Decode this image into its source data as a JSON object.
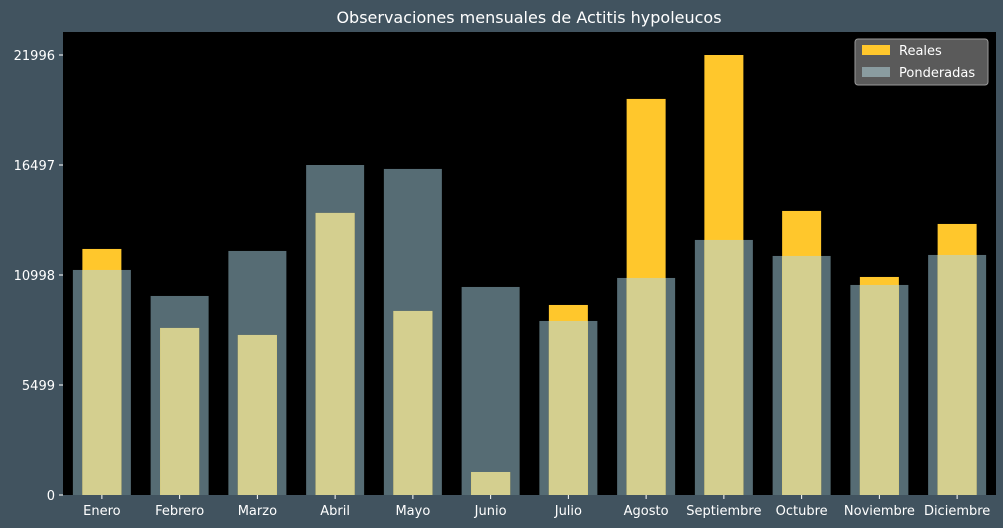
{
  "colors": {
    "background": "#41535f",
    "plot_background": "#000000",
    "actual_bar": "#ffc72c",
    "weighted_bar": "#566c74",
    "overlap": "#d4cf8f",
    "text": "#ffffff"
  },
  "chart_data": {
    "type": "bar",
    "title": "Observaciones mensuales de Actitis hypoleucos",
    "xlabel": "",
    "ylabel": "",
    "categories": [
      "Enero",
      "Febrero",
      "Marzo",
      "Abril",
      "Mayo",
      "Junio",
      "Julio",
      "Agosto",
      "Septiembre",
      "Octubre",
      "Noviembre",
      "Diciembre"
    ],
    "series": [
      {
        "name": "Reales",
        "values": [
          12300,
          8350,
          8000,
          14100,
          9200,
          1150,
          9500,
          19800,
          21996,
          14200,
          10900,
          13550
        ]
      },
      {
        "name": "Ponderadas",
        "values": [
          11250,
          9950,
          12200,
          16497,
          16300,
          10400,
          8700,
          10850,
          12750,
          11950,
          10500,
          12000
        ]
      }
    ],
    "ylim": [
      0,
      21996
    ],
    "yticks": [
      0,
      5499,
      10998,
      16497,
      21996
    ],
    "grid": false,
    "legend": "top-right"
  }
}
